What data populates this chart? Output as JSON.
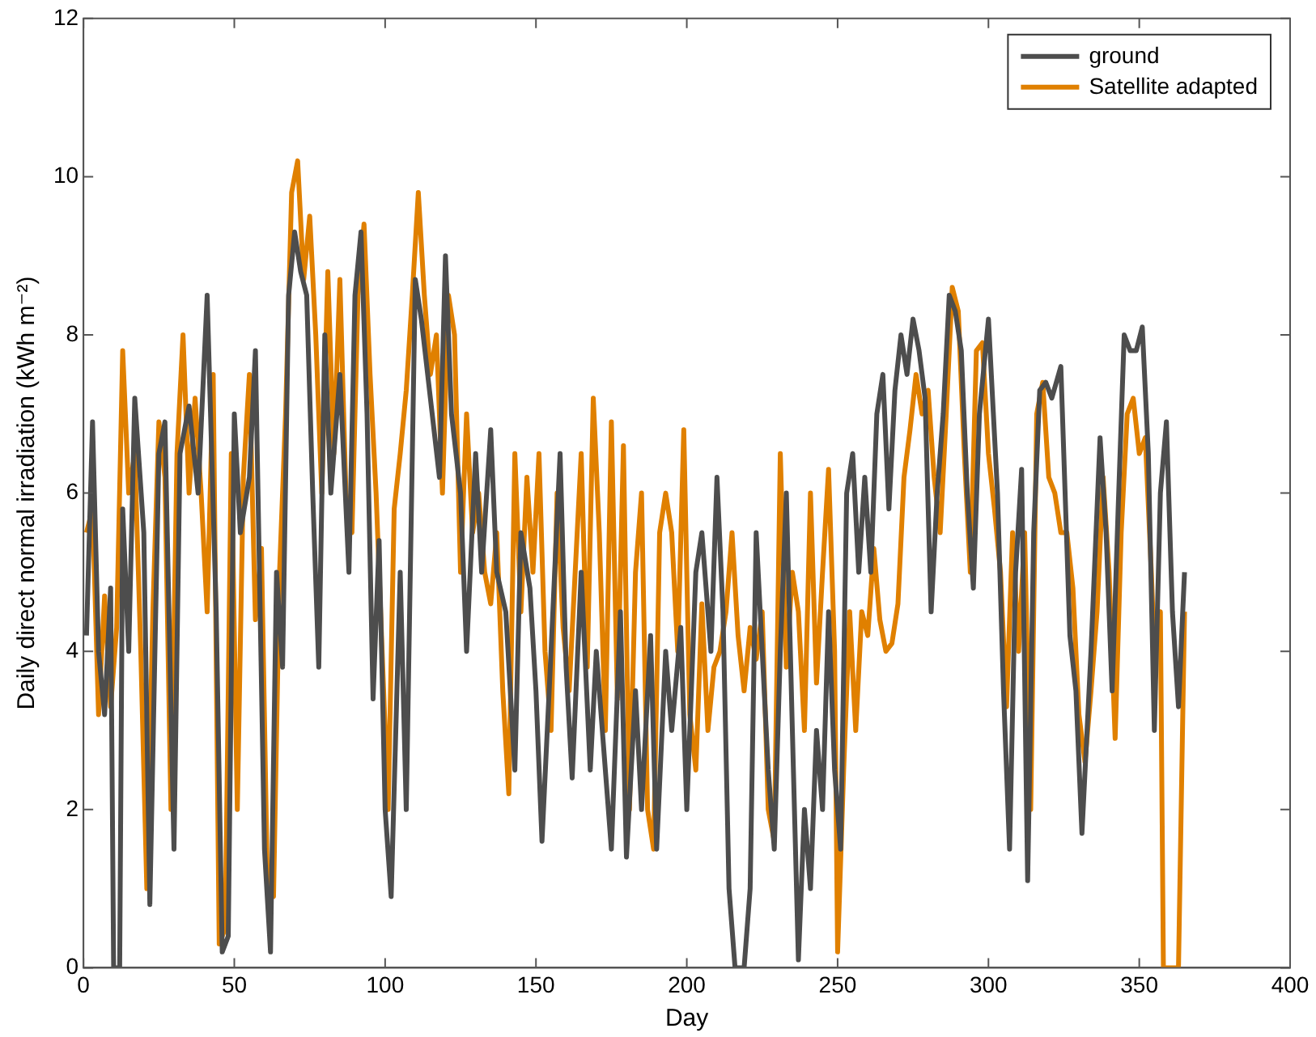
{
  "chart_data": {
    "type": "line",
    "xlabel": "Day",
    "ylabel": "Daily direct normal irradiation (kWh m⁻²)",
    "xlim": [
      0,
      400
    ],
    "xticks": [
      0,
      50,
      100,
      150,
      200,
      250,
      300,
      350,
      400
    ],
    "ylim": [
      0,
      12
    ],
    "yticks": [
      0,
      2,
      4,
      6,
      8,
      10,
      12
    ],
    "grid": false,
    "legend": "top right",
    "marker": "none",
    "line_style": "solid",
    "series": [
      {
        "name": "ground",
        "color": "#4d4d4d",
        "x": [
          1,
          3,
          5,
          7,
          9,
          10,
          12,
          13,
          15,
          17,
          20,
          22,
          25,
          27,
          30,
          32,
          35,
          38,
          41,
          44,
          46,
          48,
          50,
          52,
          55,
          57,
          60,
          62,
          64,
          66,
          68,
          70,
          72,
          74,
          76,
          78,
          80,
          82,
          85,
          88,
          90,
          92,
          94,
          96,
          98,
          100,
          102,
          105,
          107,
          110,
          112,
          115,
          118,
          120,
          122,
          125,
          127,
          130,
          132,
          135,
          137,
          140,
          143,
          145,
          148,
          150,
          152,
          155,
          158,
          160,
          162,
          165,
          168,
          170,
          172,
          175,
          178,
          180,
          183,
          185,
          188,
          190,
          193,
          195,
          198,
          200,
          203,
          205,
          208,
          210,
          212,
          214,
          216,
          219,
          221,
          223,
          225,
          227,
          229,
          231,
          233,
          235,
          237,
          239,
          241,
          243,
          245,
          247,
          249,
          251,
          253,
          255,
          257,
          259,
          261,
          263,
          265,
          267,
          269,
          271,
          273,
          275,
          277,
          279,
          281,
          283,
          285,
          287,
          289,
          291,
          293,
          295,
          297,
          300,
          303,
          305,
          307,
          309,
          311,
          313,
          315,
          317,
          319,
          321,
          324,
          327,
          329,
          331,
          334,
          337,
          339,
          341,
          343,
          345,
          347,
          349,
          351,
          353,
          355,
          357,
          359,
          361,
          363,
          365
        ],
        "values": [
          4.2,
          6.9,
          4.0,
          3.2,
          4.8,
          0,
          0,
          5.8,
          4.0,
          7.2,
          5.5,
          0.8,
          6.5,
          6.9,
          1.5,
          6.5,
          7.1,
          6.0,
          8.5,
          4.5,
          0.2,
          0.4,
          7.0,
          5.5,
          6.2,
          7.8,
          1.5,
          0.2,
          5.0,
          3.8,
          8.5,
          9.3,
          8.8,
          8.5,
          6.0,
          3.8,
          8.0,
          6.0,
          7.5,
          5.0,
          8.5,
          9.3,
          7.0,
          3.4,
          5.4,
          2.0,
          0.9,
          5.0,
          2.0,
          8.7,
          8.2,
          7.2,
          6.2,
          9.0,
          7.0,
          6.0,
          4.0,
          6.5,
          5.0,
          6.8,
          5.0,
          4.5,
          2.5,
          5.5,
          4.8,
          3.5,
          1.6,
          4.0,
          6.5,
          3.8,
          2.4,
          5.0,
          2.5,
          4.0,
          3.0,
          1.5,
          4.5,
          1.4,
          3.5,
          2.0,
          4.2,
          1.5,
          4.0,
          3.0,
          4.3,
          2.0,
          5.0,
          5.5,
          4.0,
          6.2,
          4.5,
          1.0,
          0,
          0,
          1.0,
          5.5,
          4.0,
          2.5,
          1.5,
          4.0,
          6.0,
          3.0,
          0.1,
          2.0,
          1.0,
          3.0,
          2.0,
          4.5,
          2.5,
          1.5,
          6.0,
          6.5,
          5.0,
          6.2,
          5.0,
          7.0,
          7.5,
          5.8,
          7.3,
          8.0,
          7.5,
          8.2,
          7.8,
          7.2,
          4.5,
          6.0,
          7.0,
          8.5,
          8.3,
          7.8,
          6.0,
          4.8,
          7.0,
          8.2,
          6.0,
          3.5,
          1.5,
          5.0,
          6.3,
          1.1,
          5.5,
          7.3,
          7.4,
          7.2,
          7.6,
          4.2,
          3.5,
          1.7,
          4.0,
          6.7,
          5.5,
          3.5,
          5.8,
          8.0,
          7.8,
          7.8,
          8.1,
          6.5,
          3.0,
          6.0,
          6.9,
          4.5,
          3.3,
          5.0
        ]
      },
      {
        "name": "Satellite adapted",
        "color": "#e08000",
        "x": [
          1,
          3,
          5,
          7,
          9,
          11,
          13,
          15,
          17,
          19,
          21,
          23,
          25,
          27,
          29,
          31,
          33,
          35,
          37,
          39,
          41,
          43,
          45,
          47,
          49,
          51,
          53,
          55,
          57,
          59,
          61,
          63,
          65,
          67,
          69,
          71,
          73,
          75,
          77,
          79,
          81,
          83,
          85,
          87,
          89,
          91,
          93,
          95,
          97,
          99,
          101,
          103,
          105,
          107,
          109,
          111,
          113,
          115,
          117,
          119,
          121,
          123,
          125,
          127,
          129,
          131,
          133,
          135,
          137,
          139,
          141,
          143,
          145,
          147,
          149,
          151,
          153,
          155,
          157,
          159,
          161,
          163,
          165,
          167,
          169,
          171,
          173,
          175,
          177,
          179,
          181,
          183,
          185,
          187,
          189,
          191,
          193,
          195,
          197,
          199,
          201,
          203,
          205,
          207,
          209,
          211,
          213,
          215,
          217,
          219,
          221,
          223,
          225,
          227,
          229,
          231,
          233,
          235,
          237,
          239,
          241,
          243,
          245,
          247,
          249,
          250,
          252,
          254,
          256,
          258,
          260,
          262,
          264,
          266,
          268,
          270,
          272,
          274,
          276,
          278,
          280,
          282,
          284,
          286,
          288,
          290,
          292,
          294,
          296,
          298,
          300,
          302,
          304,
          306,
          308,
          310,
          312,
          314,
          316,
          318,
          320,
          322,
          324,
          326,
          328,
          330,
          332,
          334,
          336,
          338,
          340,
          342,
          344,
          346,
          348,
          350,
          352,
          354,
          355,
          357,
          358,
          363,
          365
        ],
        "values": [
          5.5,
          5.8,
          3.2,
          4.7,
          3.3,
          4.3,
          7.8,
          6.0,
          6.5,
          4.0,
          1.0,
          4.5,
          6.9,
          6.2,
          2.0,
          6.5,
          8.0,
          6.0,
          7.2,
          6.0,
          4.5,
          7.5,
          0.3,
          0.5,
          6.5,
          2.0,
          6.2,
          7.5,
          4.4,
          5.3,
          1.0,
          0.9,
          5.0,
          7.0,
          9.8,
          10.2,
          8.7,
          9.5,
          8.0,
          6.0,
          8.8,
          6.5,
          8.7,
          6.0,
          5.5,
          8.5,
          9.4,
          7.5,
          6.0,
          4.0,
          2.0,
          5.8,
          6.5,
          7.3,
          8.5,
          9.8,
          8.5,
          7.5,
          8.0,
          6.0,
          8.5,
          8.0,
          5.0,
          7.0,
          5.5,
          6.0,
          5.0,
          4.6,
          5.5,
          3.5,
          2.2,
          6.5,
          4.5,
          6.2,
          5.0,
          6.5,
          4.0,
          3.0,
          6.0,
          4.3,
          3.5,
          5.0,
          6.5,
          3.8,
          7.2,
          5.5,
          3.0,
          6.9,
          3.4,
          6.6,
          2.0,
          5.0,
          6.0,
          2.0,
          1.5,
          5.5,
          6.0,
          5.5,
          4.0,
          6.8,
          3.2,
          2.5,
          4.6,
          3.0,
          3.8,
          4.0,
          4.5,
          5.5,
          4.2,
          3.5,
          4.3,
          3.9,
          4.5,
          2.0,
          1.6,
          6.5,
          3.8,
          5.0,
          4.5,
          3.0,
          6.0,
          3.6,
          5.0,
          6.3,
          4.0,
          0.2,
          2.5,
          4.5,
          3.0,
          4.5,
          4.2,
          5.3,
          4.4,
          4.0,
          4.1,
          4.6,
          6.2,
          6.8,
          7.5,
          7.0,
          7.3,
          6.2,
          5.5,
          7.0,
          8.6,
          8.3,
          6.5,
          5.0,
          7.8,
          7.9,
          6.5,
          5.8,
          5.0,
          3.3,
          5.5,
          4.0,
          5.5,
          2.0,
          7.0,
          7.4,
          6.2,
          6.0,
          5.5,
          5.5,
          4.8,
          3.2,
          2.6,
          3.5,
          4.5,
          6.2,
          5.0,
          2.9,
          5.5,
          7.0,
          7.2,
          6.5,
          6.7,
          5.0,
          4.0,
          4.5,
          0,
          0,
          4.5
        ]
      }
    ]
  }
}
